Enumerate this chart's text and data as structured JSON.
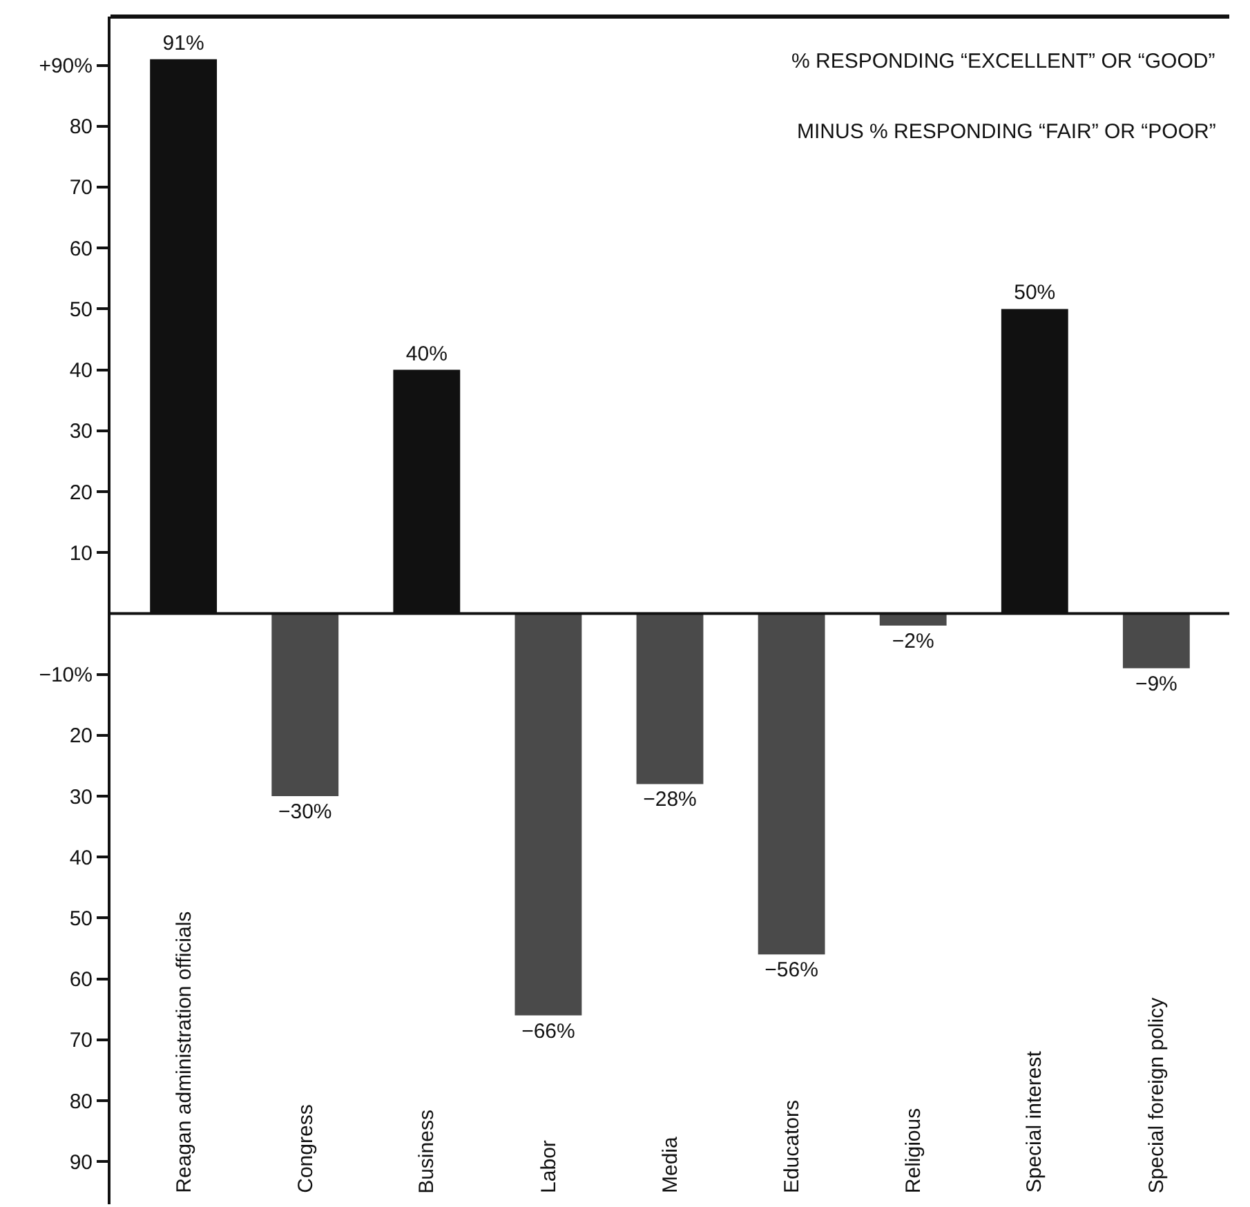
{
  "chart_data": {
    "type": "bar",
    "categories": [
      "Reagan administration officials",
      "Congress",
      "Business",
      "Labor",
      "Media",
      "Educators",
      "Religious",
      "Special interest",
      "Special foreign policy"
    ],
    "values": [
      91,
      -30,
      40,
      -66,
      -28,
      -56,
      -2,
      50,
      -9
    ],
    "colors": [
      "#111111",
      "#4a4a4a",
      "#111111",
      "#4a4a4a",
      "#4a4a4a",
      "#4a4a4a",
      "#4a4a4a",
      "#111111",
      "#4a4a4a"
    ],
    "value_labels": [
      "91%",
      "−30%",
      "40%",
      "−66%",
      "−28%",
      "−56%",
      "−2%",
      "50%",
      "−9%"
    ],
    "ylim": [
      -97,
      98
    ],
    "yticks": [
      {
        "value": 90,
        "label": "+90%"
      },
      {
        "value": 80,
        "label": "80"
      },
      {
        "value": 70,
        "label": "70"
      },
      {
        "value": 60,
        "label": "60"
      },
      {
        "value": 50,
        "label": "50"
      },
      {
        "value": 40,
        "label": "40"
      },
      {
        "value": 30,
        "label": "30"
      },
      {
        "value": 20,
        "label": "20"
      },
      {
        "value": 10,
        "label": "10"
      },
      {
        "value": -10,
        "label": "−10%"
      },
      {
        "value": -20,
        "label": "20"
      },
      {
        "value": -30,
        "label": "30"
      },
      {
        "value": -40,
        "label": "40"
      },
      {
        "value": -50,
        "label": "50"
      },
      {
        "value": -60,
        "label": "60"
      },
      {
        "value": -70,
        "label": "70"
      },
      {
        "value": -80,
        "label": "80"
      },
      {
        "value": -90,
        "label": "90"
      }
    ],
    "annotations": [
      "% RESPONDING “EXCELLENT” OR “GOOD”",
      "MINUS % RESPONDING “FAIR” OR “POOR”"
    ]
  }
}
